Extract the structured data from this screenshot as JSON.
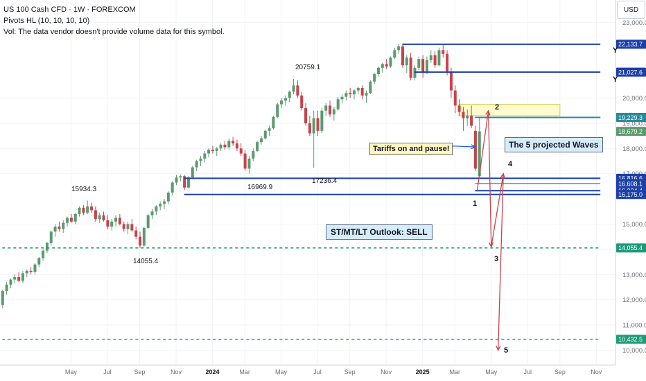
{
  "header": {
    "title": "US 100 Cash CFD · 1W · FOREXCOM",
    "pivots": "Pivots HL (10, 10, 10, 10)",
    "volume_note": "Vol: The data vendor doesn't provide volume data for this symbol."
  },
  "currency_button": "USD",
  "pivot_labels": [
    "15934.3",
    "14055.4",
    "20759.1",
    "16969.9",
    "17236.4"
  ],
  "annotations": {
    "tariffs": "Tariffs on and pause!",
    "waves": "The 5 projected Waves",
    "outlook": "ST/MT/LT Outlook: SELL",
    "wave_numbers": [
      "1",
      "2",
      "3",
      "4",
      "5"
    ],
    "y_marks": [
      "Y",
      "Y"
    ]
  },
  "colors": {
    "up": "#5b9a6e",
    "down": "#c9424b",
    "hline": "#1c3fa8",
    "dash": "#1f9a78",
    "wave": "#c9424b",
    "zone": "#fffbcc"
  },
  "chart_data": {
    "type": "candlestick",
    "symbol": "US 100 Cash CFD",
    "timeframe": "1W",
    "y_axis": {
      "scale": "linear",
      "range": [
        9800,
        24200
      ],
      "ticks": [
        "23,000.0",
        "20,000.0",
        "19,000.0",
        "18,000.0",
        "17,000.0",
        "15,000.0",
        "14,000.0",
        "13,000.0",
        "12,000.0",
        "11,000.0",
        "10,000.0"
      ],
      "tick_values": [
        23000,
        20000,
        19000,
        18000,
        17000,
        15000,
        14000,
        13000,
        12000,
        11000,
        10000
      ]
    },
    "x_axis": {
      "ticks": [
        "May",
        "Jul",
        "Sep",
        "Nov",
        "2024",
        "Mar",
        "May",
        "Jul",
        "Sep",
        "Nov",
        "2025",
        "Mar",
        "May",
        "Jul",
        "Sep",
        "Nov"
      ],
      "tick_weeks": [
        17,
        26,
        34,
        43,
        52,
        60,
        69,
        78,
        86,
        95,
        104,
        112,
        121,
        130,
        138,
        147
      ]
    },
    "price_levels": [
      {
        "label": "22,133.7",
        "value": 22133.7,
        "style": "solid",
        "color": "blue"
      },
      {
        "label": "21,027.6",
        "value": 21027.6,
        "style": "solid",
        "color": "blue"
      },
      {
        "label": "19,231.5",
        "value": 19231.5,
        "style": "solid",
        "color": "blue"
      },
      {
        "label": "19,229.3",
        "value": 19229.3,
        "style": "solid",
        "color": "teal"
      },
      {
        "label": "18,679.2",
        "value": 18679.2,
        "style": "current",
        "color": "green"
      },
      {
        "label": "16,816.6",
        "value": 16816.6,
        "style": "solid",
        "color": "blue"
      },
      {
        "label": "16,608.1",
        "value": 16608.1,
        "style": "solid",
        "color": "blue"
      },
      {
        "label": "16,324.4",
        "value": 16324.4,
        "style": "solid",
        "color": "blue"
      },
      {
        "label": "16,175.0",
        "value": 16175.0,
        "style": "solid",
        "color": "blue"
      },
      {
        "label": "14,055.4",
        "value": 14055.4,
        "style": "dashed",
        "color": "teal"
      },
      {
        "label": "10,432.5",
        "value": 10432.5,
        "style": "dashed",
        "color": "teal"
      }
    ],
    "resistance_zone": [
      19300,
      19750
    ],
    "projected_waves": [
      {
        "label": "1",
        "value": 16300
      },
      {
        "label": "2",
        "value": 19500
      },
      {
        "label": "3",
        "value": 14100
      },
      {
        "label": "4",
        "value": 17000
      },
      {
        "label": "5",
        "value": 10000
      }
    ],
    "candles": [
      {
        "o": 11800,
        "h": 12400,
        "l": 11650,
        "c": 12350
      },
      {
        "o": 12350,
        "h": 12700,
        "l": 12200,
        "c": 12600
      },
      {
        "o": 12600,
        "h": 12850,
        "l": 12450,
        "c": 12800
      },
      {
        "o": 12800,
        "h": 13000,
        "l": 12650,
        "c": 12900
      },
      {
        "o": 12900,
        "h": 13100,
        "l": 12700,
        "c": 12750
      },
      {
        "o": 12750,
        "h": 13150,
        "l": 12650,
        "c": 13050
      },
      {
        "o": 13050,
        "h": 13200,
        "l": 12900,
        "c": 13150
      },
      {
        "o": 13150,
        "h": 13300,
        "l": 13000,
        "c": 13100
      },
      {
        "o": 13100,
        "h": 13450,
        "l": 13000,
        "c": 13400
      },
      {
        "o": 13400,
        "h": 13700,
        "l": 13300,
        "c": 13650
      },
      {
        "o": 13650,
        "h": 14000,
        "l": 13550,
        "c": 13950
      },
      {
        "o": 13950,
        "h": 14300,
        "l": 13850,
        "c": 14250
      },
      {
        "o": 14250,
        "h": 14750,
        "l": 14150,
        "c": 14700
      },
      {
        "o": 14700,
        "h": 15000,
        "l": 14500,
        "c": 14900
      },
      {
        "o": 14900,
        "h": 15100,
        "l": 14700,
        "c": 14800
      },
      {
        "o": 14800,
        "h": 15150,
        "l": 14650,
        "c": 15050
      },
      {
        "o": 15050,
        "h": 15300,
        "l": 14900,
        "c": 15250
      },
      {
        "o": 15250,
        "h": 15400,
        "l": 15050,
        "c": 15100
      },
      {
        "o": 15100,
        "h": 15450,
        "l": 15000,
        "c": 15400
      },
      {
        "o": 15400,
        "h": 15700,
        "l": 15300,
        "c": 15650
      },
      {
        "o": 15650,
        "h": 15750,
        "l": 15350,
        "c": 15450
      },
      {
        "o": 15450,
        "h": 15934,
        "l": 15400,
        "c": 15700
      },
      {
        "o": 15700,
        "h": 15850,
        "l": 15450,
        "c": 15550
      },
      {
        "o": 15550,
        "h": 15700,
        "l": 15100,
        "c": 15200
      },
      {
        "o": 15200,
        "h": 15450,
        "l": 15050,
        "c": 15350
      },
      {
        "o": 15350,
        "h": 15500,
        "l": 15100,
        "c": 15150
      },
      {
        "o": 15150,
        "h": 15350,
        "l": 14800,
        "c": 14900
      },
      {
        "o": 14900,
        "h": 15200,
        "l": 14750,
        "c": 15100
      },
      {
        "o": 15100,
        "h": 15350,
        "l": 14900,
        "c": 15250
      },
      {
        "o": 15250,
        "h": 15400,
        "l": 14950,
        "c": 15000
      },
      {
        "o": 15000,
        "h": 15100,
        "l": 14700,
        "c": 14800
      },
      {
        "o": 14800,
        "h": 15100,
        "l": 14600,
        "c": 15000
      },
      {
        "o": 15000,
        "h": 15200,
        "l": 14700,
        "c": 14750
      },
      {
        "o": 14750,
        "h": 14900,
        "l": 14400,
        "c": 14500
      },
      {
        "o": 14500,
        "h": 14700,
        "l": 14055,
        "c": 14150
      },
      {
        "o": 14150,
        "h": 14900,
        "l": 14100,
        "c": 14850
      },
      {
        "o": 14850,
        "h": 15400,
        "l": 14800,
        "c": 15350
      },
      {
        "o": 15350,
        "h": 15600,
        "l": 15200,
        "c": 15500
      },
      {
        "o": 15500,
        "h": 15750,
        "l": 15350,
        "c": 15700
      },
      {
        "o": 15700,
        "h": 15900,
        "l": 15550,
        "c": 15800
      },
      {
        "o": 15800,
        "h": 16000,
        "l": 15600,
        "c": 15900
      },
      {
        "o": 15900,
        "h": 16300,
        "l": 15800,
        "c": 16250
      },
      {
        "o": 16250,
        "h": 16700,
        "l": 16150,
        "c": 16650
      },
      {
        "o": 16650,
        "h": 16950,
        "l": 16550,
        "c": 16850
      },
      {
        "o": 16850,
        "h": 16969,
        "l": 16700,
        "c": 16900
      },
      {
        "o": 16900,
        "h": 16950,
        "l": 16350,
        "c": 16450
      },
      {
        "o": 16450,
        "h": 16900,
        "l": 16400,
        "c": 16850
      },
      {
        "o": 16850,
        "h": 17300,
        "l": 16800,
        "c": 17250
      },
      {
        "o": 17250,
        "h": 17550,
        "l": 17100,
        "c": 17500
      },
      {
        "o": 17500,
        "h": 17700,
        "l": 17300,
        "c": 17600
      },
      {
        "o": 17600,
        "h": 17900,
        "l": 17450,
        "c": 17800
      },
      {
        "o": 17800,
        "h": 18000,
        "l": 17650,
        "c": 17950
      },
      {
        "o": 17950,
        "h": 18100,
        "l": 17800,
        "c": 17900
      },
      {
        "o": 17900,
        "h": 18050,
        "l": 17700,
        "c": 18000
      },
      {
        "o": 18000,
        "h": 18200,
        "l": 17900,
        "c": 18150
      },
      {
        "o": 18150,
        "h": 18300,
        "l": 17950,
        "c": 18050
      },
      {
        "o": 18050,
        "h": 18400,
        "l": 17950,
        "c": 18300
      },
      {
        "o": 18300,
        "h": 18450,
        "l": 18100,
        "c": 18200
      },
      {
        "o": 18200,
        "h": 18350,
        "l": 17900,
        "c": 18000
      },
      {
        "o": 18000,
        "h": 18200,
        "l": 17700,
        "c": 17800
      },
      {
        "o": 17800,
        "h": 17950,
        "l": 17100,
        "c": 17200
      },
      {
        "o": 17200,
        "h": 17700,
        "l": 17000,
        "c": 17600
      },
      {
        "o": 17600,
        "h": 18000,
        "l": 17500,
        "c": 17900
      },
      {
        "o": 17900,
        "h": 18300,
        "l": 17850,
        "c": 18250
      },
      {
        "o": 18250,
        "h": 18500,
        "l": 18150,
        "c": 18400
      },
      {
        "o": 18400,
        "h": 18750,
        "l": 18350,
        "c": 18700
      },
      {
        "o": 18700,
        "h": 18900,
        "l": 18500,
        "c": 18800
      },
      {
        "o": 18800,
        "h": 19300,
        "l": 18750,
        "c": 19250
      },
      {
        "o": 19250,
        "h": 19800,
        "l": 19200,
        "c": 19750
      },
      {
        "o": 19750,
        "h": 20000,
        "l": 19600,
        "c": 19900
      },
      {
        "o": 19900,
        "h": 20100,
        "l": 19700,
        "c": 20000
      },
      {
        "o": 20000,
        "h": 20300,
        "l": 19850,
        "c": 20250
      },
      {
        "o": 20250,
        "h": 20759,
        "l": 20150,
        "c": 20500
      },
      {
        "o": 20500,
        "h": 20700,
        "l": 20000,
        "c": 20100
      },
      {
        "o": 20100,
        "h": 20250,
        "l": 19500,
        "c": 19600
      },
      {
        "o": 19600,
        "h": 19800,
        "l": 18900,
        "c": 19000
      },
      {
        "o": 19000,
        "h": 19300,
        "l": 18500,
        "c": 18600
      },
      {
        "o": 18600,
        "h": 19500,
        "l": 17236,
        "c": 19200
      },
      {
        "o": 19200,
        "h": 19500,
        "l": 18500,
        "c": 18700
      },
      {
        "o": 18700,
        "h": 19600,
        "l": 18600,
        "c": 19500
      },
      {
        "o": 19500,
        "h": 19800,
        "l": 19300,
        "c": 19700
      },
      {
        "o": 19700,
        "h": 19900,
        "l": 19250,
        "c": 19350
      },
      {
        "o": 19350,
        "h": 19650,
        "l": 19100,
        "c": 19550
      },
      {
        "o": 19550,
        "h": 20050,
        "l": 19500,
        "c": 19950
      },
      {
        "o": 19950,
        "h": 20150,
        "l": 19800,
        "c": 20050
      },
      {
        "o": 20050,
        "h": 20300,
        "l": 19900,
        "c": 20200
      },
      {
        "o": 20200,
        "h": 20400,
        "l": 20000,
        "c": 20150
      },
      {
        "o": 20150,
        "h": 20350,
        "l": 19950,
        "c": 20300
      },
      {
        "o": 20300,
        "h": 20450,
        "l": 20150,
        "c": 20400
      },
      {
        "o": 20400,
        "h": 20500,
        "l": 19950,
        "c": 20100
      },
      {
        "o": 20100,
        "h": 20300,
        "l": 19800,
        "c": 20200
      },
      {
        "o": 20200,
        "h": 20700,
        "l": 20150,
        "c": 20650
      },
      {
        "o": 20650,
        "h": 21000,
        "l": 20550,
        "c": 20950
      },
      {
        "o": 20950,
        "h": 21250,
        "l": 20850,
        "c": 21200
      },
      {
        "o": 21200,
        "h": 21400,
        "l": 21000,
        "c": 21350
      },
      {
        "o": 21350,
        "h": 21550,
        "l": 21150,
        "c": 21250
      },
      {
        "o": 21250,
        "h": 21650,
        "l": 21200,
        "c": 21600
      },
      {
        "o": 21600,
        "h": 22000,
        "l": 21550,
        "c": 21900
      },
      {
        "o": 21900,
        "h": 22150,
        "l": 21750,
        "c": 22050
      },
      {
        "o": 22050,
        "h": 22150,
        "l": 21200,
        "c": 21300
      },
      {
        "o": 21300,
        "h": 21700,
        "l": 21000,
        "c": 21600
      },
      {
        "o": 21600,
        "h": 21800,
        "l": 20700,
        "c": 20800
      },
      {
        "o": 20800,
        "h": 21300,
        "l": 20700,
        "c": 21200
      },
      {
        "o": 21200,
        "h": 21650,
        "l": 21100,
        "c": 21550
      },
      {
        "o": 21550,
        "h": 21700,
        "l": 20800,
        "c": 21000
      },
      {
        "o": 21000,
        "h": 21650,
        "l": 20950,
        "c": 21500
      },
      {
        "o": 21500,
        "h": 21900,
        "l": 21400,
        "c": 21700
      },
      {
        "o": 21700,
        "h": 21850,
        "l": 21200,
        "c": 21300
      },
      {
        "o": 21300,
        "h": 22000,
        "l": 21250,
        "c": 21900
      },
      {
        "o": 21900,
        "h": 22133,
        "l": 21600,
        "c": 21750
      },
      {
        "o": 21750,
        "h": 21900,
        "l": 20900,
        "c": 21050
      },
      {
        "o": 21050,
        "h": 21200,
        "l": 20000,
        "c": 20300
      },
      {
        "o": 20300,
        "h": 20500,
        "l": 19400,
        "c": 19700
      },
      {
        "o": 19700,
        "h": 19950,
        "l": 19300,
        "c": 19450
      },
      {
        "o": 19450,
        "h": 19650,
        "l": 18700,
        "c": 19200
      },
      {
        "o": 19200,
        "h": 19550,
        "l": 18900,
        "c": 19300
      },
      {
        "o": 19300,
        "h": 19700,
        "l": 18800,
        "c": 18900
      },
      {
        "o": 18700,
        "h": 18900,
        "l": 17100,
        "c": 17200
      },
      {
        "o": 16900,
        "h": 19200,
        "l": 16900,
        "c": 18680
      }
    ]
  }
}
